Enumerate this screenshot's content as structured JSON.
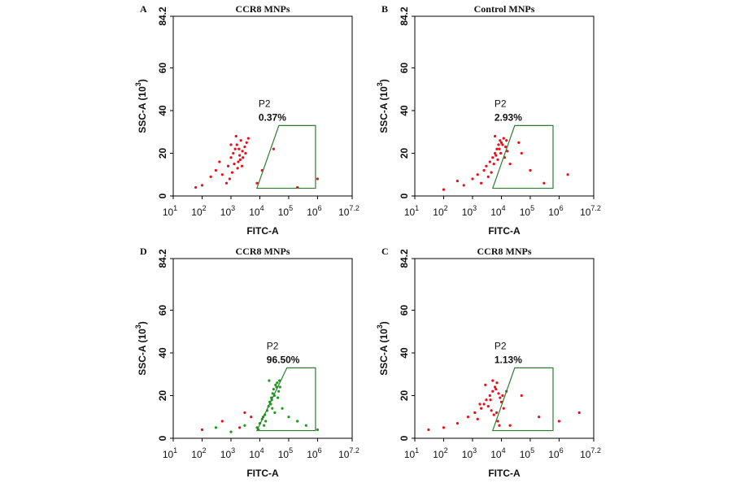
{
  "chart_data": [
    {
      "type": "scatter",
      "label": "A",
      "title": "CCR8 MNPs",
      "xlabel": "FITC-A",
      "ylabel": "SSC-A (10",
      "ylabel_sup": "3",
      "ylabel_end": ")",
      "xscale": "log",
      "xlim": [
        10,
        15848932
      ],
      "ylim": [
        0,
        84.2
      ],
      "xticks": [
        {
          "value": 10,
          "label": "10",
          "sup": "1"
        },
        {
          "value": 100,
          "label": "10",
          "sup": "2"
        },
        {
          "value": 1000,
          "label": "10",
          "sup": "3"
        },
        {
          "value": 10000,
          "label": "10",
          "sup": "4"
        },
        {
          "value": 100000,
          "label": "10",
          "sup": "5"
        },
        {
          "value": 1000000,
          "label": "10",
          "sup": "6"
        },
        {
          "value": 15848932,
          "label": "10",
          "sup": "7.2"
        }
      ],
      "yticks": [
        0,
        20,
        40,
        60,
        84.2
      ],
      "series": [
        {
          "color": "#e8101a",
          "x": [
            300,
            500,
            800,
            1000,
            1200,
            1400,
            1600,
            1800,
            2000,
            2200,
            2500,
            3000,
            3500,
            4000,
            1300,
            1700,
            2100,
            900,
            1100,
            2600,
            1500,
            1900,
            700,
            2400,
            1000,
            3200,
            200,
            100,
            60,
            400,
            30000,
            200000,
            1000000,
            8000,
            12000
          ],
          "y": [
            12,
            10,
            14,
            18,
            20,
            22,
            24,
            16,
            19,
            26,
            21,
            23,
            25,
            27,
            15,
            13,
            17,
            8,
            11,
            18,
            28,
            22,
            6,
            14,
            24,
            20,
            9,
            5,
            4,
            16,
            22,
            4,
            8,
            6,
            12
          ]
        }
      ],
      "gate": {
        "label": "P2",
        "value": 0.37,
        "value_label": "0.37%",
        "color": "#2e7d32",
        "x": [
          7900,
          45700,
          851000,
          851000
        ],
        "y": [
          3.6,
          33,
          33,
          3.6
        ]
      }
    },
    {
      "type": "scatter",
      "label": "B",
      "title": "Control MNPs",
      "xlabel": "FITC-A",
      "ylabel": "SSC-A (10",
      "ylabel_sup": "3",
      "ylabel_end": ")",
      "xscale": "log",
      "xlim": [
        10,
        15848932
      ],
      "ylim": [
        0,
        84.2
      ],
      "xticks": [
        {
          "value": 10,
          "label": "10",
          "sup": "1"
        },
        {
          "value": 100,
          "label": "10",
          "sup": "2"
        },
        {
          "value": 1000,
          "label": "10",
          "sup": "3"
        },
        {
          "value": 10000,
          "label": "10",
          "sup": "4"
        },
        {
          "value": 100000,
          "label": "10",
          "sup": "5"
        },
        {
          "value": 1000000,
          "label": "10",
          "sup": "6"
        },
        {
          "value": 15848932,
          "label": "10",
          "sup": "7.2"
        }
      ],
      "yticks": [
        0,
        20,
        40,
        60,
        84.2
      ],
      "series": [
        {
          "color": "#e8101a",
          "x": [
            1000,
            1500,
            2500,
            3000,
            4000,
            5000,
            6000,
            7000,
            8000,
            9000,
            10000,
            12000,
            14000,
            16000,
            4500,
            5500,
            6500,
            3500,
            7500,
            11000,
            6000,
            8500,
            2000,
            9500,
            13000,
            15000,
            500,
            300,
            100,
            50000,
            100000,
            300000,
            2000000,
            20000,
            40000
          ],
          "y": [
            8,
            10,
            12,
            14,
            16,
            18,
            20,
            22,
            24,
            26,
            25,
            27,
            23,
            21,
            11,
            15,
            19,
            9,
            17,
            24,
            28,
            22,
            6,
            20,
            18,
            26,
            5,
            7,
            3,
            20,
            12,
            6,
            10,
            15,
            25
          ]
        }
      ],
      "gate": {
        "label": "P2",
        "value": 2.93,
        "value_label": "2.93%",
        "color": "#2e7d32",
        "x": [
          5000,
          29000,
          617000,
          617000
        ],
        "y": [
          3.6,
          33,
          33,
          3.6
        ]
      }
    },
    {
      "type": "scatter",
      "label": "D",
      "title": "CCR8 MNPs",
      "xlabel": "FITC-A",
      "ylabel": "SSC-A (10",
      "ylabel_sup": "3",
      "ylabel_end": ")",
      "xscale": "log",
      "xlim": [
        10,
        15848932
      ],
      "ylim": [
        0,
        84.2
      ],
      "xticks": [
        {
          "value": 10,
          "label": "10",
          "sup": "1"
        },
        {
          "value": 100,
          "label": "10",
          "sup": "2"
        },
        {
          "value": 1000,
          "label": "10",
          "sup": "3"
        },
        {
          "value": 10000,
          "label": "10",
          "sup": "4"
        },
        {
          "value": 100000,
          "label": "10",
          "sup": "5"
        },
        {
          "value": 1000000,
          "label": "10",
          "sup": "6"
        },
        {
          "value": 15848932,
          "label": "10",
          "sup": "7.2"
        }
      ],
      "yticks": [
        0,
        20,
        40,
        60,
        84.2
      ],
      "series": [
        {
          "color": "#1a9e1a",
          "x": [
            8000,
            10000,
            12000,
            15000,
            18000,
            20000,
            22000,
            25000,
            28000,
            30000,
            35000,
            40000,
            45000,
            50000,
            16000,
            24000,
            32000,
            14000,
            26000,
            38000,
            21000,
            27000,
            9000,
            33000,
            42000,
            48000,
            3000,
            1000,
            300,
            100000,
            200000,
            400000,
            1000000,
            60000,
            13000
          ],
          "y": [
            5,
            7,
            9,
            11,
            13,
            15,
            17,
            19,
            21,
            23,
            25,
            26,
            22,
            24,
            8,
            16,
            20,
            6,
            18,
            24,
            27,
            14,
            4,
            12,
            19,
            27,
            6,
            3,
            5,
            10,
            8,
            6,
            4,
            14,
            10
          ]
        },
        {
          "color": "#e8101a",
          "x": [
            500,
            2000,
            5000,
            3000,
            100
          ],
          "y": [
            8,
            5,
            10,
            12,
            4
          ]
        }
      ],
      "gate": {
        "label": "P2",
        "value": 96.5,
        "value_label": "96.50%",
        "color": "#2e7d32",
        "x": [
          7900,
          87000,
          851000,
          851000
        ],
        "y": [
          3.6,
          33,
          33,
          3.6
        ]
      }
    },
    {
      "type": "scatter",
      "label": "C",
      "title": "CCR8 MNPs",
      "xlabel": "FITC-A",
      "ylabel": "SSC-A (10",
      "ylabel_sup": "3",
      "ylabel_end": ")",
      "xscale": "log",
      "xlim": [
        10,
        15848932
      ],
      "ylim": [
        0,
        84.2
      ],
      "xticks": [
        {
          "value": 10,
          "label": "10",
          "sup": "1"
        },
        {
          "value": 100,
          "label": "10",
          "sup": "2"
        },
        {
          "value": 1000,
          "label": "10",
          "sup": "3"
        },
        {
          "value": 10000,
          "label": "10",
          "sup": "4"
        },
        {
          "value": 100000,
          "label": "10",
          "sup": "5"
        },
        {
          "value": 1000000,
          "label": "10",
          "sup": "6"
        },
        {
          "value": 15848932,
          "label": "10",
          "sup": "7.2"
        }
      ],
      "yticks": [
        0,
        20,
        40,
        60,
        84.2
      ],
      "series": [
        {
          "color": "#e8101a",
          "x": [
            700,
            1200,
            2000,
            2500,
            3000,
            4000,
            5000,
            6000,
            7000,
            8000,
            9000,
            10000,
            3500,
            4500,
            5500,
            6500,
            1500,
            2800,
            7500,
            11000,
            5000,
            8500,
            1800,
            4200,
            6800,
            12000,
            300,
            100,
            30,
            50000,
            200000,
            1000000,
            5000000,
            20000,
            15000
          ],
          "y": [
            10,
            12,
            14,
            16,
            18,
            20,
            22,
            24,
            26,
            21,
            19,
            17,
            15,
            13,
            11,
            23,
            9,
            25,
            8,
            20,
            27,
            6,
            16,
            18,
            12,
            14,
            7,
            5,
            4,
            20,
            10,
            8,
            12,
            6,
            22
          ]
        }
      ],
      "gate": {
        "label": "P2",
        "value": 1.13,
        "value_label": "1.13%",
        "color": "#2e7d32",
        "x": [
          5000,
          29000,
          617000,
          617000
        ],
        "y": [
          3.6,
          33,
          33,
          3.6
        ]
      }
    }
  ]
}
